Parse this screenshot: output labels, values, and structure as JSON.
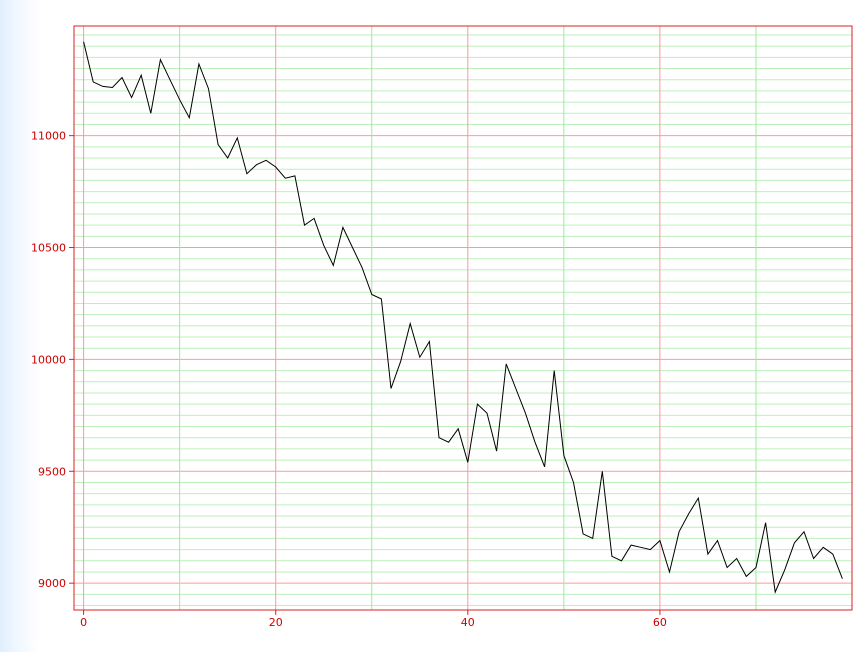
{
  "chart_data": {
    "type": "line",
    "title": "",
    "xlabel": "",
    "ylabel": "",
    "xlim": [
      -1,
      80
    ],
    "ylim": [
      8880,
      11490
    ],
    "x_ticks": [
      0,
      20,
      40,
      60
    ],
    "x_tick_labels": [
      "0",
      "20",
      "40",
      "60"
    ],
    "y_ticks": [
      9000,
      9500,
      10000,
      10500,
      11000
    ],
    "y_tick_labels": [
      "9000",
      "9500",
      "10000",
      "10500",
      "11000"
    ],
    "grid": true,
    "colors": {
      "line": "#000000",
      "frame": "#dd2222",
      "major_grid": "#ff9999",
      "vertical_minor_grid": "#99ee99",
      "horizontal_minor_grid": "#bbf0bb",
      "tick_label": "#cc0000"
    },
    "series": [
      {
        "x": [
          0,
          1,
          2,
          3,
          4,
          5,
          6,
          7,
          8,
          9,
          10,
          11,
          12,
          13,
          14,
          15,
          16,
          17,
          18,
          19,
          20,
          21,
          22,
          23,
          24,
          25,
          26,
          27,
          28,
          29,
          30,
          31,
          32,
          33,
          34,
          35,
          36,
          37,
          38,
          39,
          40,
          41,
          42,
          43,
          44,
          45,
          46,
          47,
          48,
          49,
          50,
          51,
          52,
          53,
          54,
          55,
          56,
          57,
          58,
          59,
          60,
          61,
          62,
          63,
          64,
          65,
          66,
          67,
          68,
          69,
          70,
          71,
          72,
          73,
          74,
          75,
          76,
          77,
          78,
          79
        ],
        "values": [
          11420,
          11240,
          11220,
          11215,
          11260,
          11170,
          11270,
          11100,
          11340,
          11250,
          11160,
          11080,
          11320,
          11210,
          10960,
          10900,
          10990,
          10830,
          10870,
          10890,
          10860,
          10810,
          10820,
          10600,
          10630,
          10510,
          10420,
          10590,
          10500,
          10410,
          10290,
          10270,
          9870,
          9990,
          10160,
          10010,
          10080,
          9650,
          9630,
          9690,
          9540,
          9800,
          9760,
          9590,
          9980,
          9870,
          9760,
          9630,
          9520,
          9950,
          9570,
          9450,
          9220,
          9200,
          9500,
          9120,
          9100,
          9170,
          9160,
          9150,
          9190,
          9050,
          9230,
          9310,
          9380,
          9130,
          9190,
          9070,
          9110,
          9030,
          9070,
          9270,
          8960,
          9060,
          9180,
          9230,
          9110,
          9160,
          9130,
          9020
        ]
      }
    ]
  }
}
